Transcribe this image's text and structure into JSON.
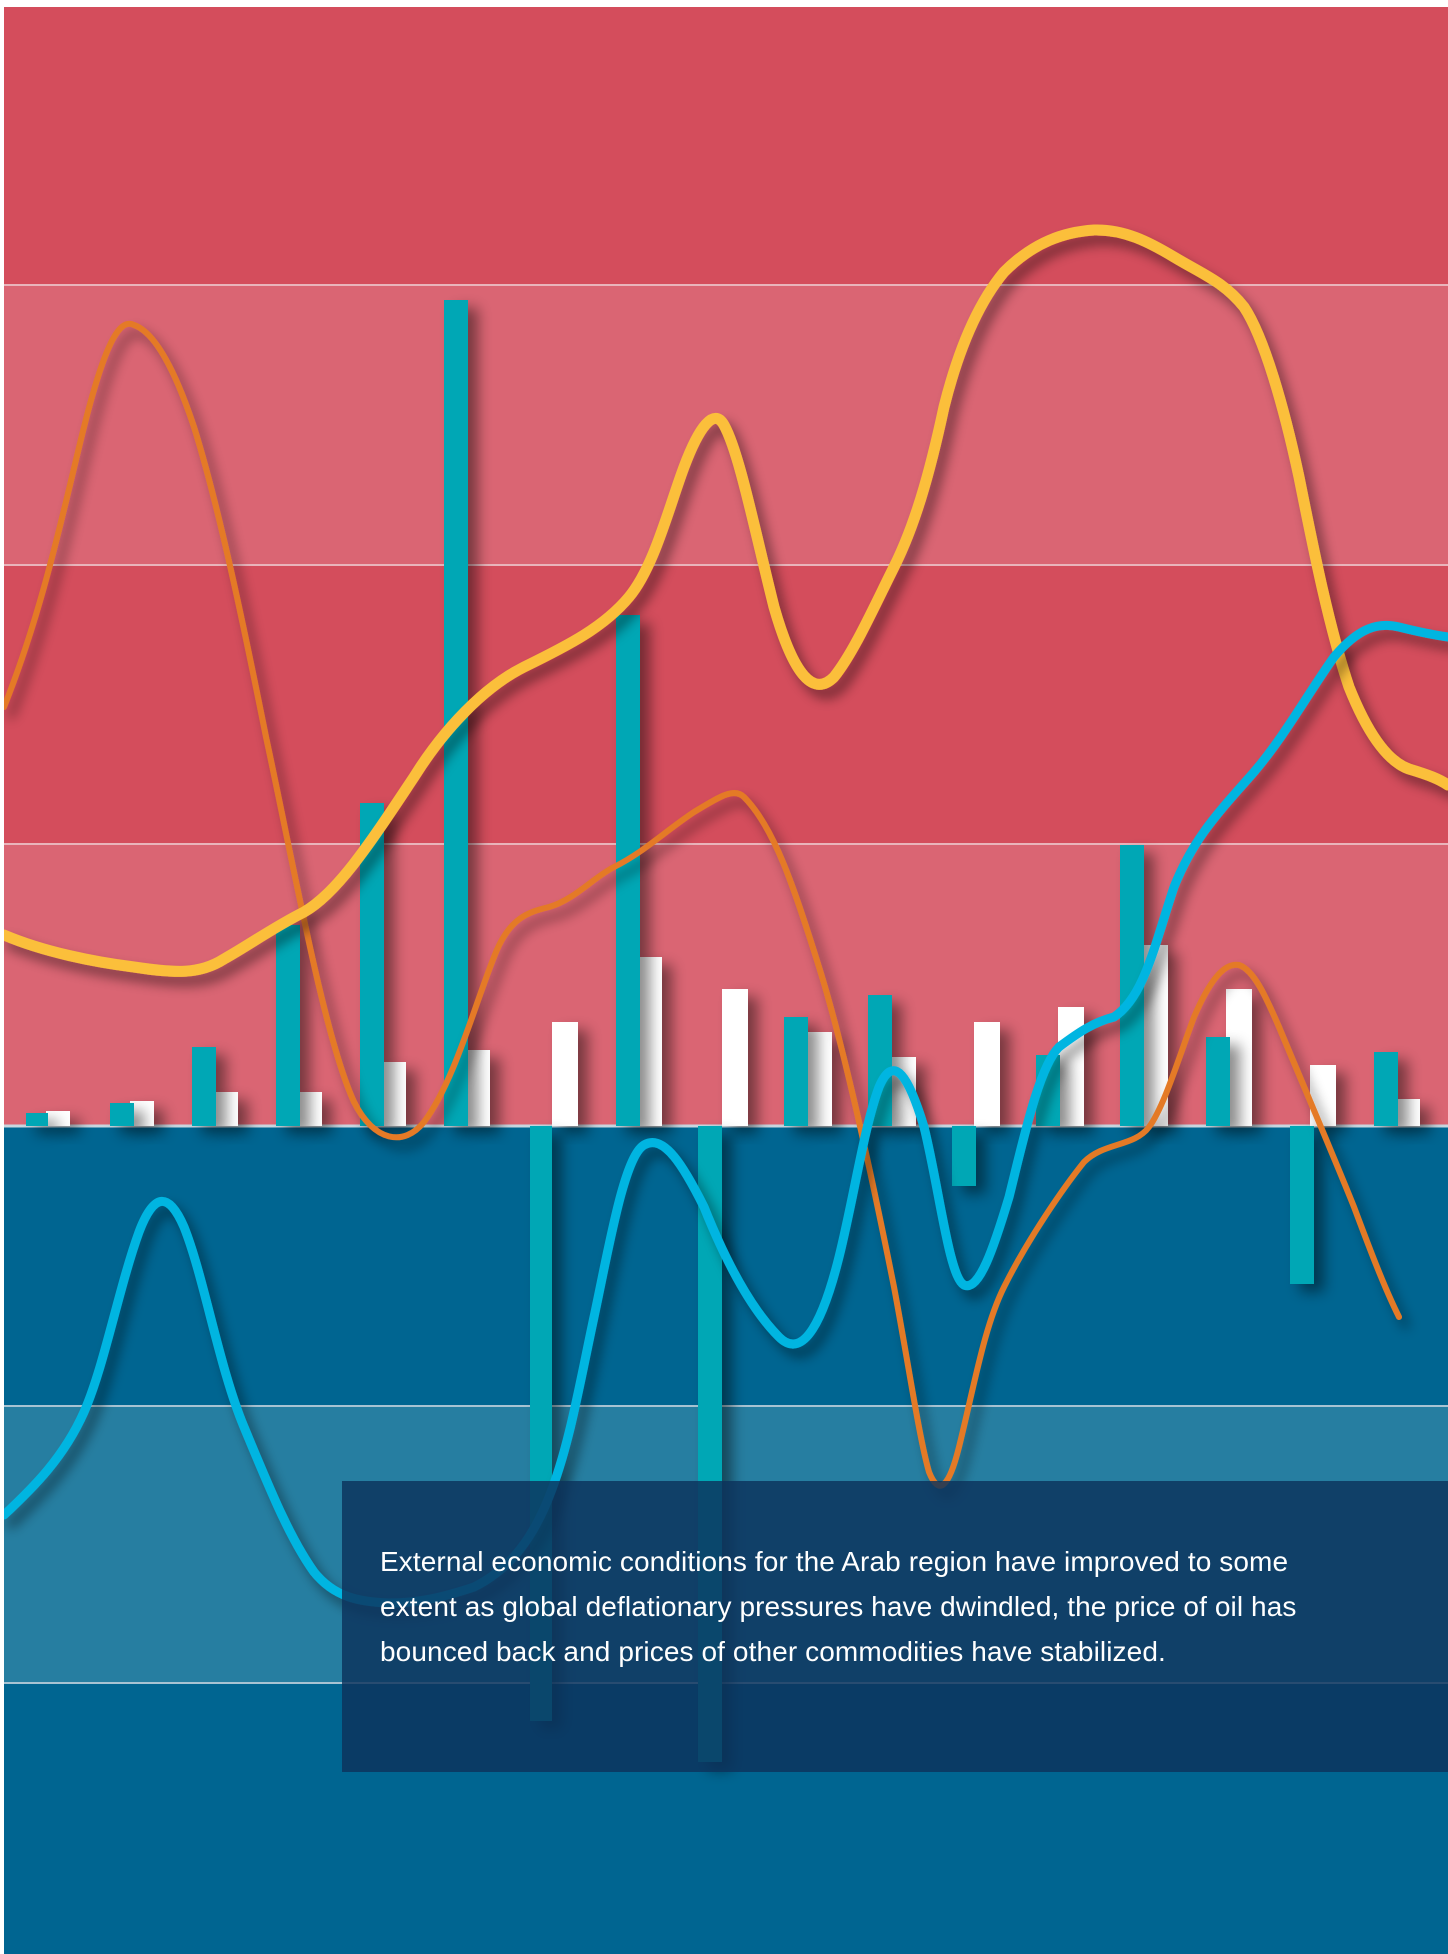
{
  "cover": {
    "caption": "External economic conditions for the Arab region have improved to some extent as global deflationary pressures have dwindled, the price of oil has bounced back and prices of other commodities have stabilized."
  },
  "colors": {
    "band_red_dark": "#d44d5c",
    "band_red_light": "#da6573",
    "band_blue_dark": "#006591",
    "band_blue_light": "#267ea1",
    "bar_teal": "#00a7b5",
    "bar_white": "#ffffff",
    "line_yellow": "#fbbf3b",
    "line_orange": "#e47a25",
    "line_cyan": "#00b5e1",
    "caption_panel": "#0c325c"
  }
}
